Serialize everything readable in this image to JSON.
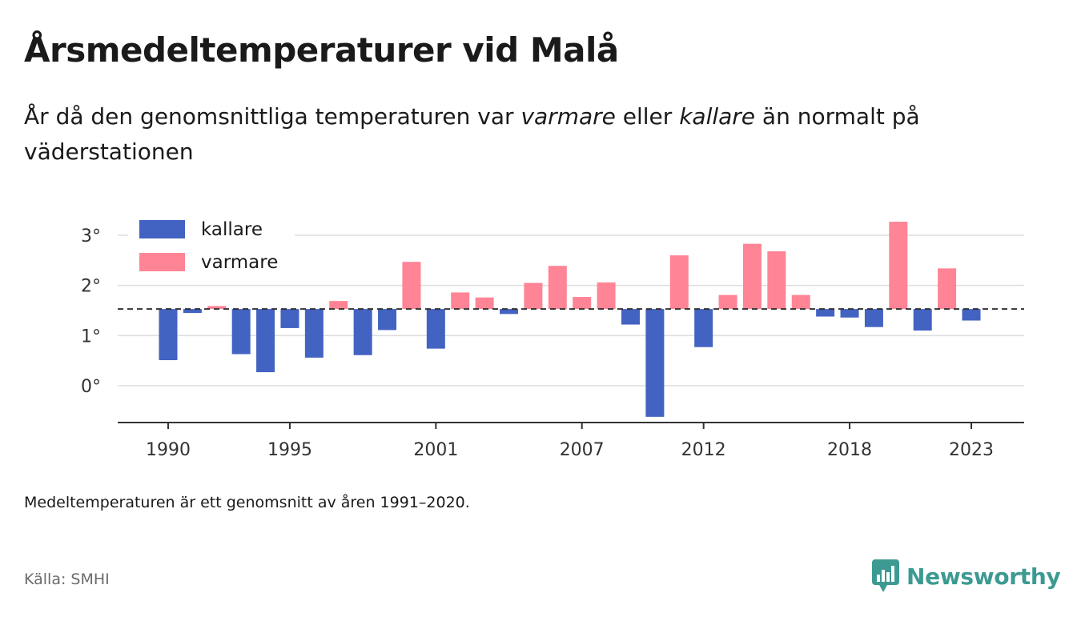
{
  "title": "Årsmedeltemperaturer vid Malå",
  "subtitle": {
    "part1": "År då den genomsnittliga temperaturen var ",
    "warm_word": "varmare",
    "part2": " eller ",
    "cold_word": "kallare",
    "part3": " än normalt på väderstationen"
  },
  "note": "Medeltemperaturen är ett genomsnitt av åren 1991–2020.",
  "source": "Källa: SMHI",
  "logo_text": "Newsworthy",
  "colors": {
    "cold": "#4263c2",
    "warm": "#ff8496",
    "grid": "#dddddd",
    "axis": "#333333",
    "reference": "#333333",
    "brand": "#3d9a92"
  },
  "chart_data": {
    "type": "bar",
    "reference_value": 1.53,
    "reference_style": "dashed",
    "ylim": [
      -0.7,
      3.3
    ],
    "yticks": [
      0,
      1,
      2,
      3
    ],
    "ytick_labels": [
      "0°",
      "1°",
      "2°",
      "3°"
    ],
    "xticks": [
      1990,
      1995,
      2001,
      2007,
      2012,
      2018,
      2023
    ],
    "xtick_labels": [
      "1990",
      "1995",
      "2001",
      "2007",
      "2012",
      "2018",
      "2023"
    ],
    "legend_position": "top-left",
    "legend": [
      {
        "key": "cold",
        "label": "kallare"
      },
      {
        "key": "warm",
        "label": "varmare"
      }
    ],
    "years": [
      1990,
      1991,
      1992,
      1993,
      1994,
      1995,
      1996,
      1997,
      1998,
      1999,
      2000,
      2001,
      2002,
      2003,
      2004,
      2005,
      2006,
      2007,
      2008,
      2009,
      2010,
      2011,
      2012,
      2013,
      2014,
      2015,
      2016,
      2017,
      2018,
      2019,
      2020,
      2021,
      2022,
      2023
    ],
    "values": [
      0.51,
      1.45,
      1.59,
      0.63,
      0.27,
      1.15,
      0.56,
      1.69,
      0.61,
      1.11,
      2.47,
      0.74,
      1.86,
      1.76,
      1.43,
      2.05,
      2.39,
      1.77,
      2.06,
      1.22,
      -0.62,
      2.6,
      0.77,
      1.81,
      2.83,
      2.68,
      1.81,
      1.38,
      1.36,
      1.17,
      3.27,
      1.1,
      2.34,
      1.3
    ]
  }
}
